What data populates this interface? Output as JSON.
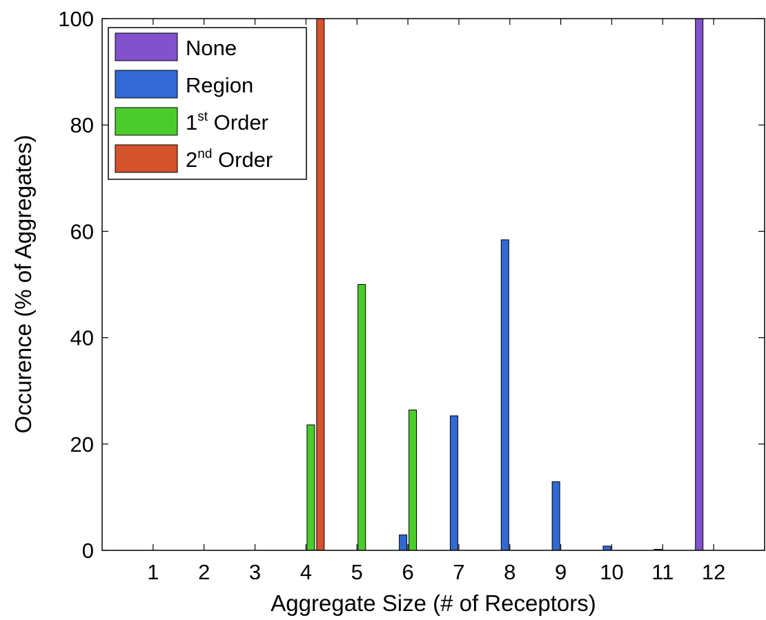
{
  "chart_data": {
    "type": "bar",
    "xlabel": "Aggregate Size (# of Receptors)",
    "ylabel": "Occurence (% of Aggregates)",
    "categories": [
      "1",
      "2",
      "3",
      "4",
      "5",
      "6",
      "7",
      "8",
      "9",
      "10",
      "11",
      "12"
    ],
    "ylim": [
      0,
      100
    ],
    "yticks": [
      0,
      20,
      40,
      60,
      80,
      100
    ],
    "grid": false,
    "legend_position": "top-left",
    "series": [
      {
        "name": "None",
        "color": "#8152CC",
        "values": [
          0,
          0,
          0,
          0,
          0,
          0,
          0,
          0,
          0,
          0,
          0,
          100
        ]
      },
      {
        "name": "Region",
        "color": "#3269D4",
        "values": [
          0,
          0,
          0,
          0,
          0,
          2.9,
          25.3,
          58.4,
          12.9,
          0.8,
          0.2,
          0
        ]
      },
      {
        "name": "1st Order",
        "color": "#4CCC2C",
        "values": [
          0,
          0,
          0,
          23.6,
          50,
          26.4,
          0,
          0,
          0,
          0,
          0,
          0
        ]
      },
      {
        "name": "2nd Order",
        "color": "#D4522C",
        "values": [
          0,
          0,
          0,
          100,
          0,
          0,
          0,
          0,
          0,
          0,
          0,
          0
        ]
      }
    ],
    "legend": [
      {
        "base": "None",
        "sup": "",
        "rest": ""
      },
      {
        "base": "Region",
        "sup": "",
        "rest": ""
      },
      {
        "base": "1",
        "sup": "st",
        "rest": " Order"
      },
      {
        "base": "2",
        "sup": "nd",
        "rest": " Order"
      }
    ]
  }
}
